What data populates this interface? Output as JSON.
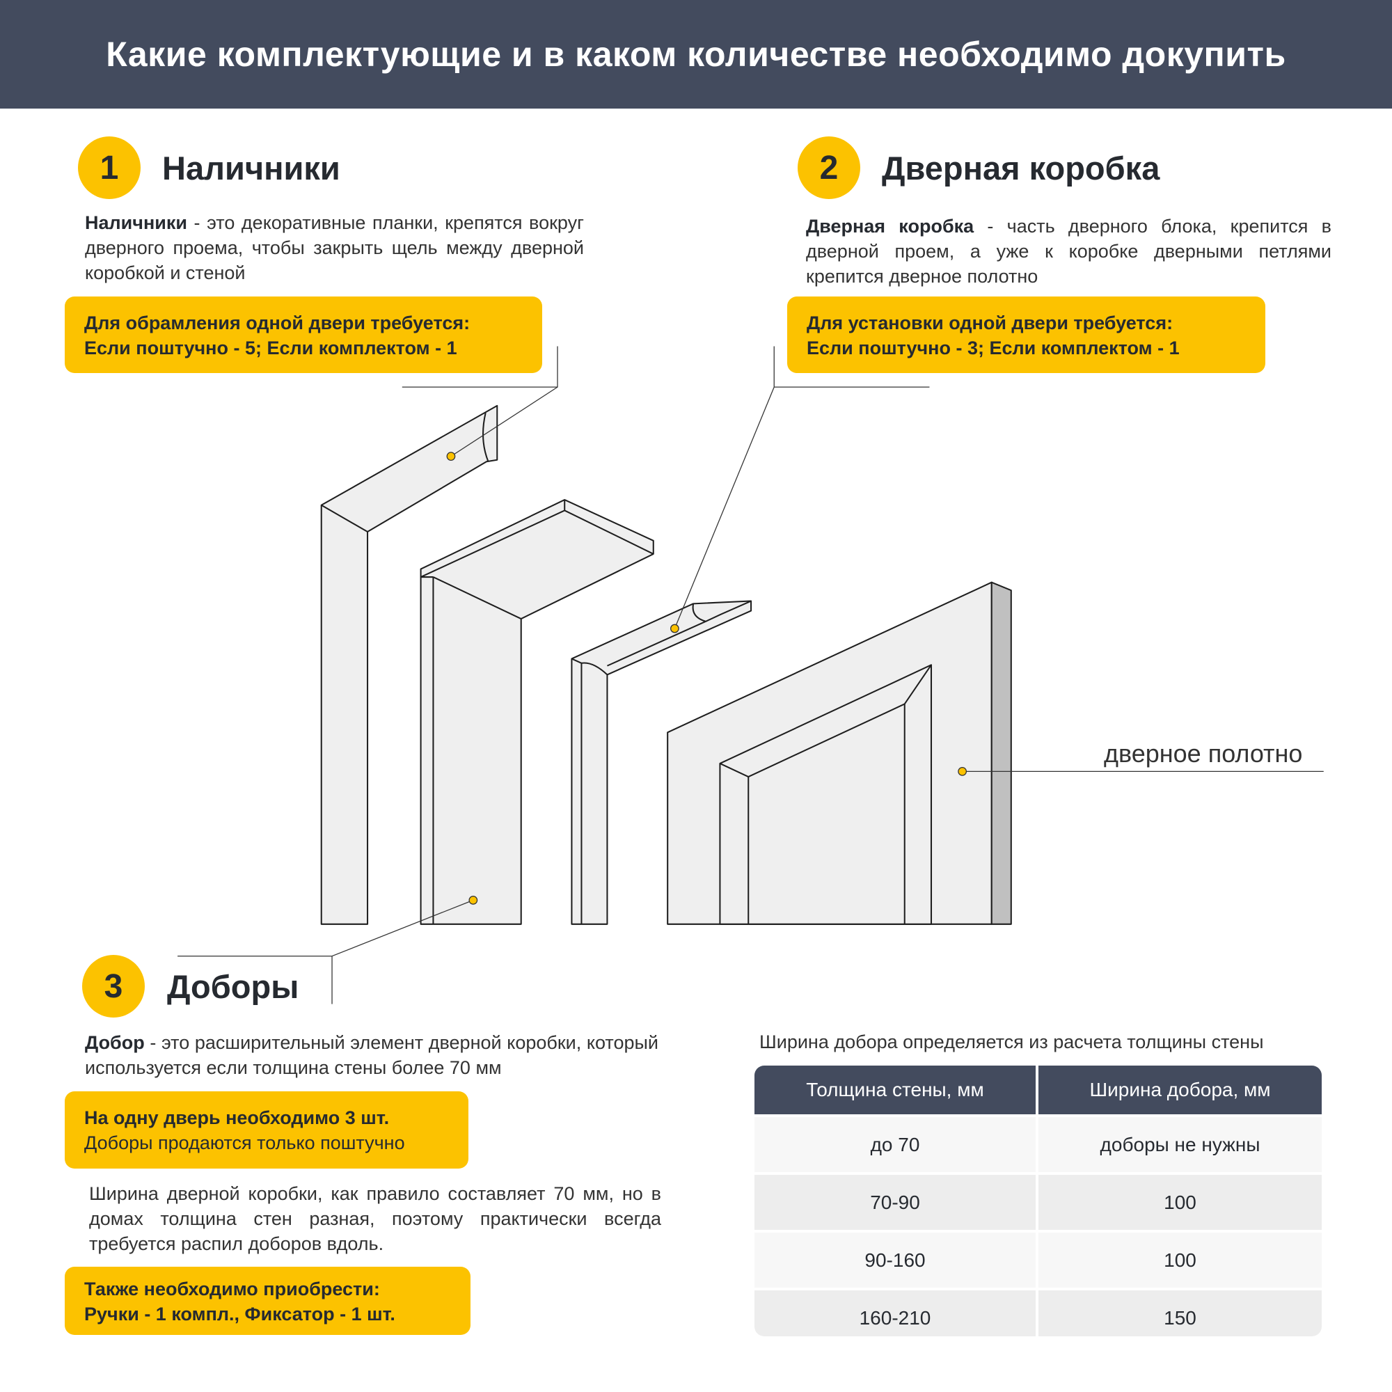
{
  "header": {
    "title": "Какие комплектующие и в каком количестве необходимо докупить"
  },
  "sections": [
    {
      "number": "1",
      "title": "Наличники",
      "term": "Наличники",
      "description": " - это декоративные планки, крепятся вокруг дверного проема, чтобы закрыть щель между  дверной коробкой и стеной",
      "box_line1": "Для обрамления одной двери требуется:",
      "box_line2": "Если поштучно - 5;  Если комплектом - 1"
    },
    {
      "number": "2",
      "title": "Дверная коробка",
      "term": "Дверная коробка",
      "description": " - часть дверного блока, крепится в дверной проем, а уже к коробке дверными петлями крепится дверное полотно",
      "box_line1": "Для установки одной двери требуется:",
      "box_line2": "Если поштучно - 3;  Если комплектом - 1"
    },
    {
      "number": "3",
      "title": "Доборы",
      "term": "Добор",
      "description": " - это расширительный элемент дверной коробки, который используется если толщина стены более 70 мм",
      "box_line1": "На одну дверь необходимо 3 шт.",
      "box_line2": "Доборы продаются только поштучно",
      "note": "Ширина дверной коробки, как правило составляет 70 мм, но в домах толщина стен разная, поэтому практически всегда требуется распил доборов вдоль.",
      "extra_line1": "Также необходимо приобрести:",
      "extra_line2": "Ручки - 1 компл.,   Фиксатор - 1 шт."
    }
  ],
  "diagram": {
    "door_leaf_label": "дверное полотно"
  },
  "table": {
    "caption": "Ширина добора определяется из расчета толщины стены",
    "headers": [
      "Толщина стены, мм",
      "Ширина добора, мм"
    ],
    "rows": [
      [
        "до 70",
        "доборы не нужны"
      ],
      [
        "70-90",
        "100"
      ],
      [
        "90-160",
        "100"
      ],
      [
        "160-210",
        "150"
      ]
    ]
  },
  "colors": {
    "header_bg": "#434b5e",
    "accent_yellow": "#fcc200",
    "row_light": "#f7f7f7",
    "row_dark": "#ededed"
  }
}
